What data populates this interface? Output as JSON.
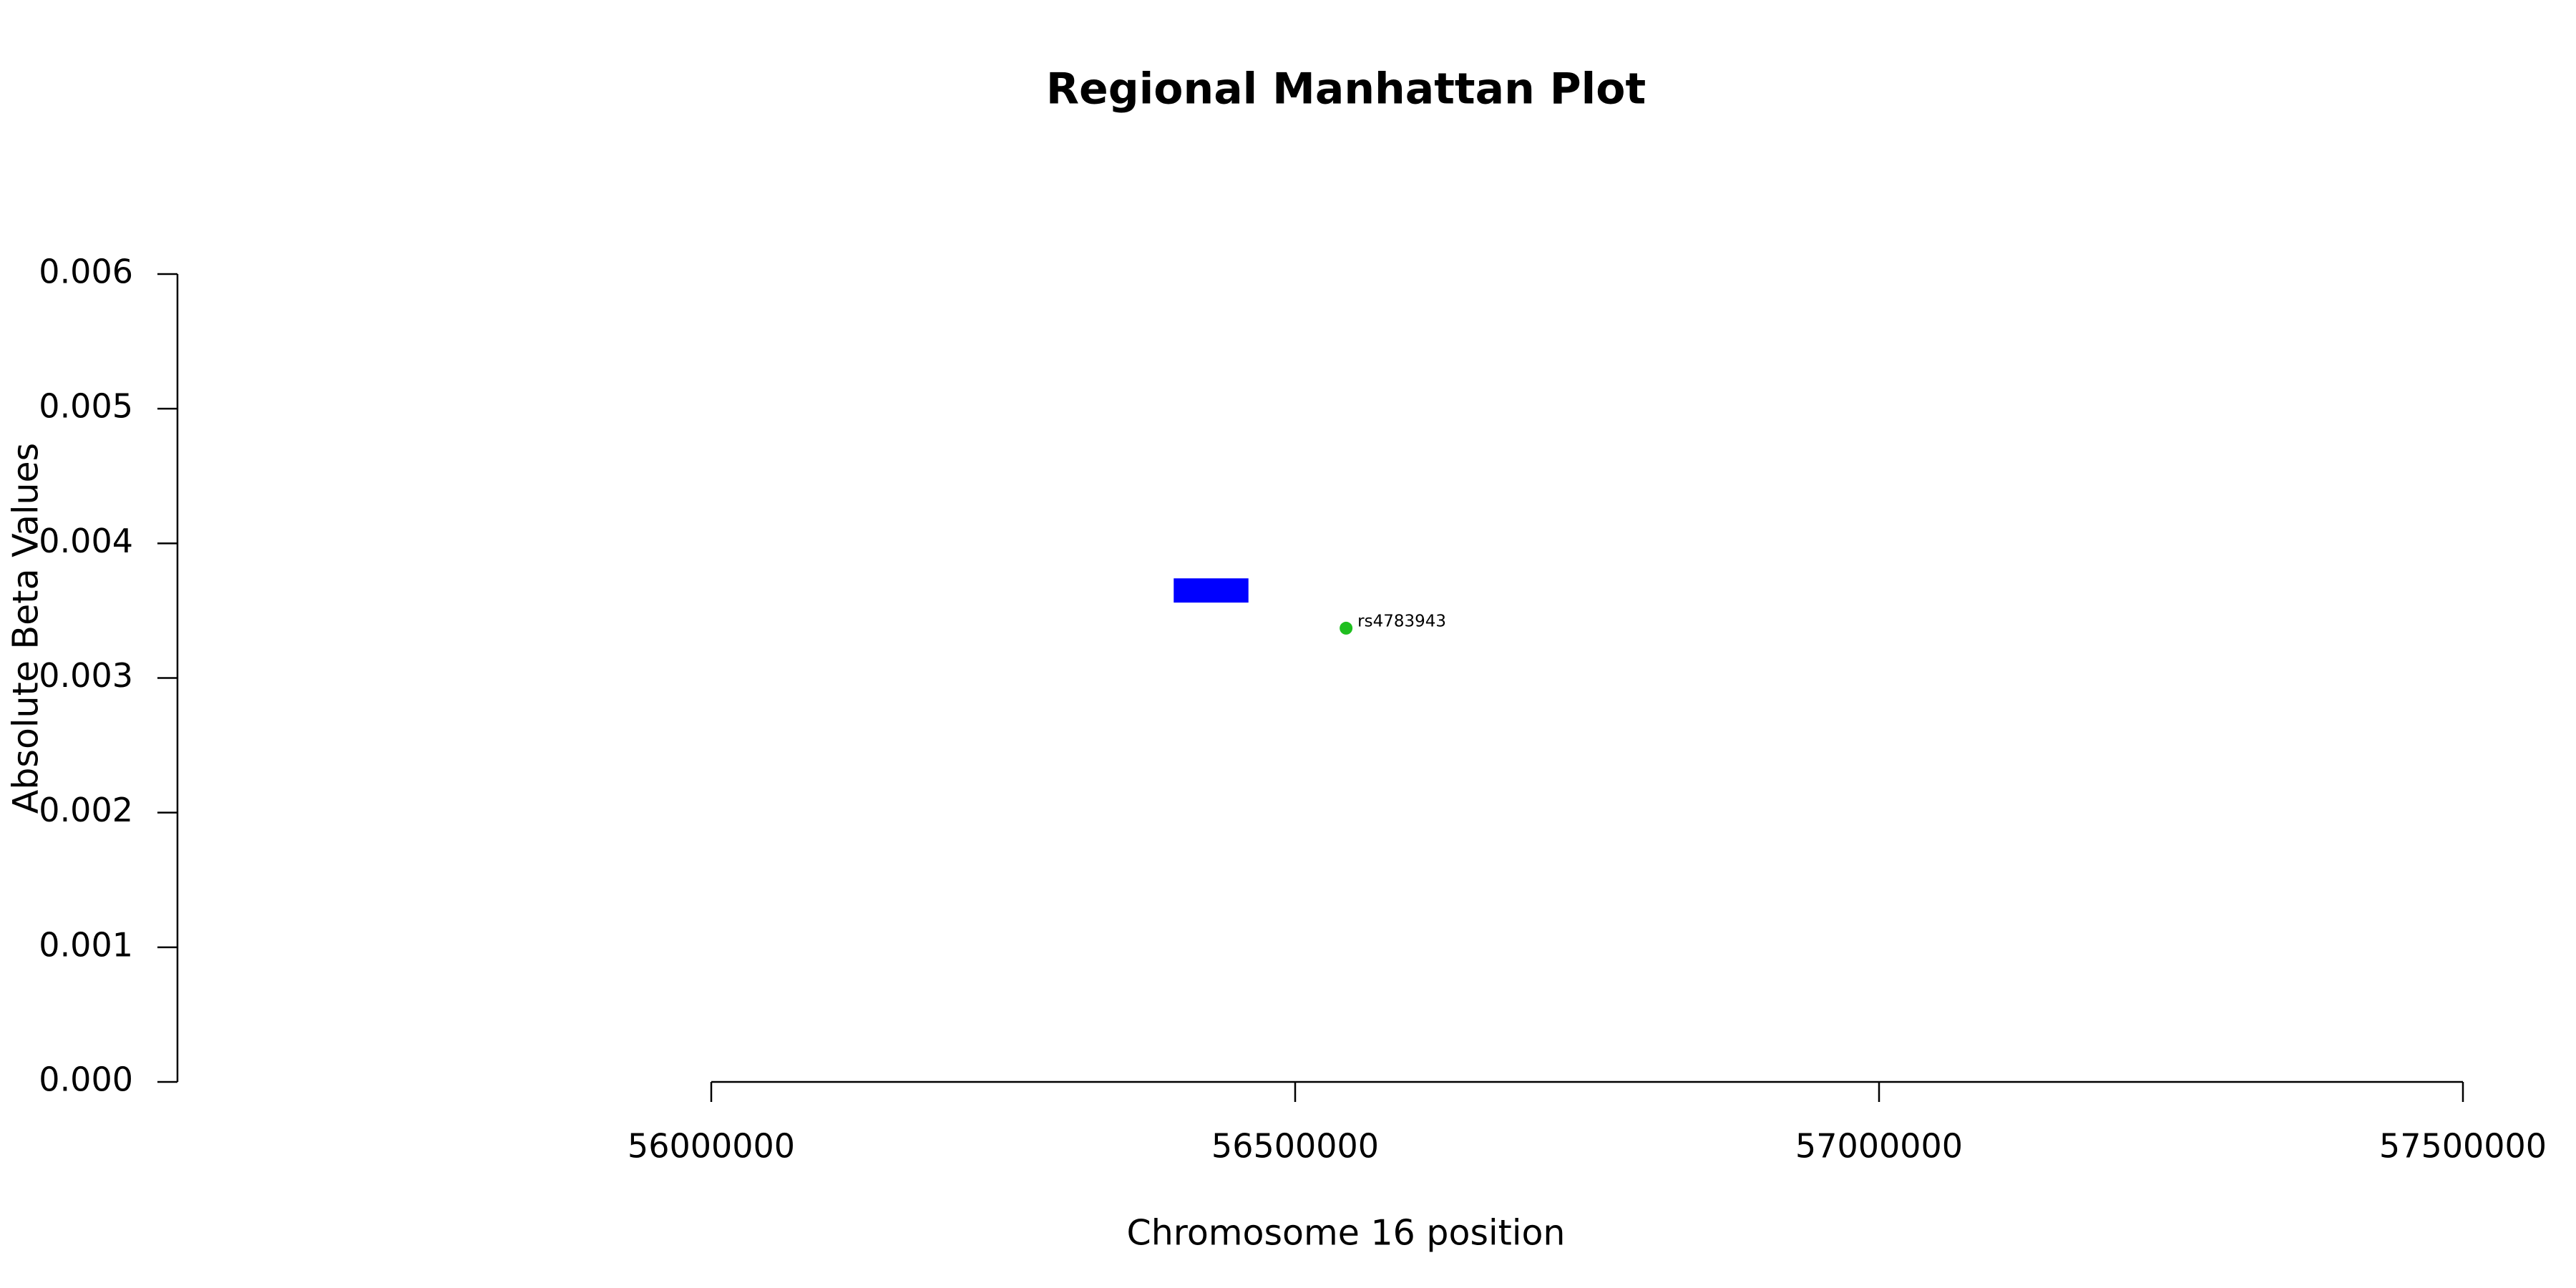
{
  "chart_data": {
    "type": "scatter",
    "title": "Regional Manhattan Plot",
    "xlabel": "Chromosome 16 position",
    "ylabel": "Absolute Beta Values",
    "x": [
      56543600
    ],
    "values": [
      0.00337
    ],
    "point_labels": [
      "rs4783943"
    ],
    "color": "#1fbf1f",
    "regions": [
      {
        "start": 56396000,
        "end": 56460000,
        "ymin": 0.00356,
        "ymax": 0.00374,
        "color": "#0000ff"
      }
    ],
    "xlim": [
      56000000,
      57500000
    ],
    "xticks": [
      56000000,
      56500000,
      57000000,
      57500000
    ],
    "ylim": [
      0,
      0.006
    ],
    "yticks": [
      {
        "value": 0,
        "label": "0.000"
      },
      0.001,
      0.002,
      0.003,
      0.004,
      0.005,
      0.006
    ]
  }
}
